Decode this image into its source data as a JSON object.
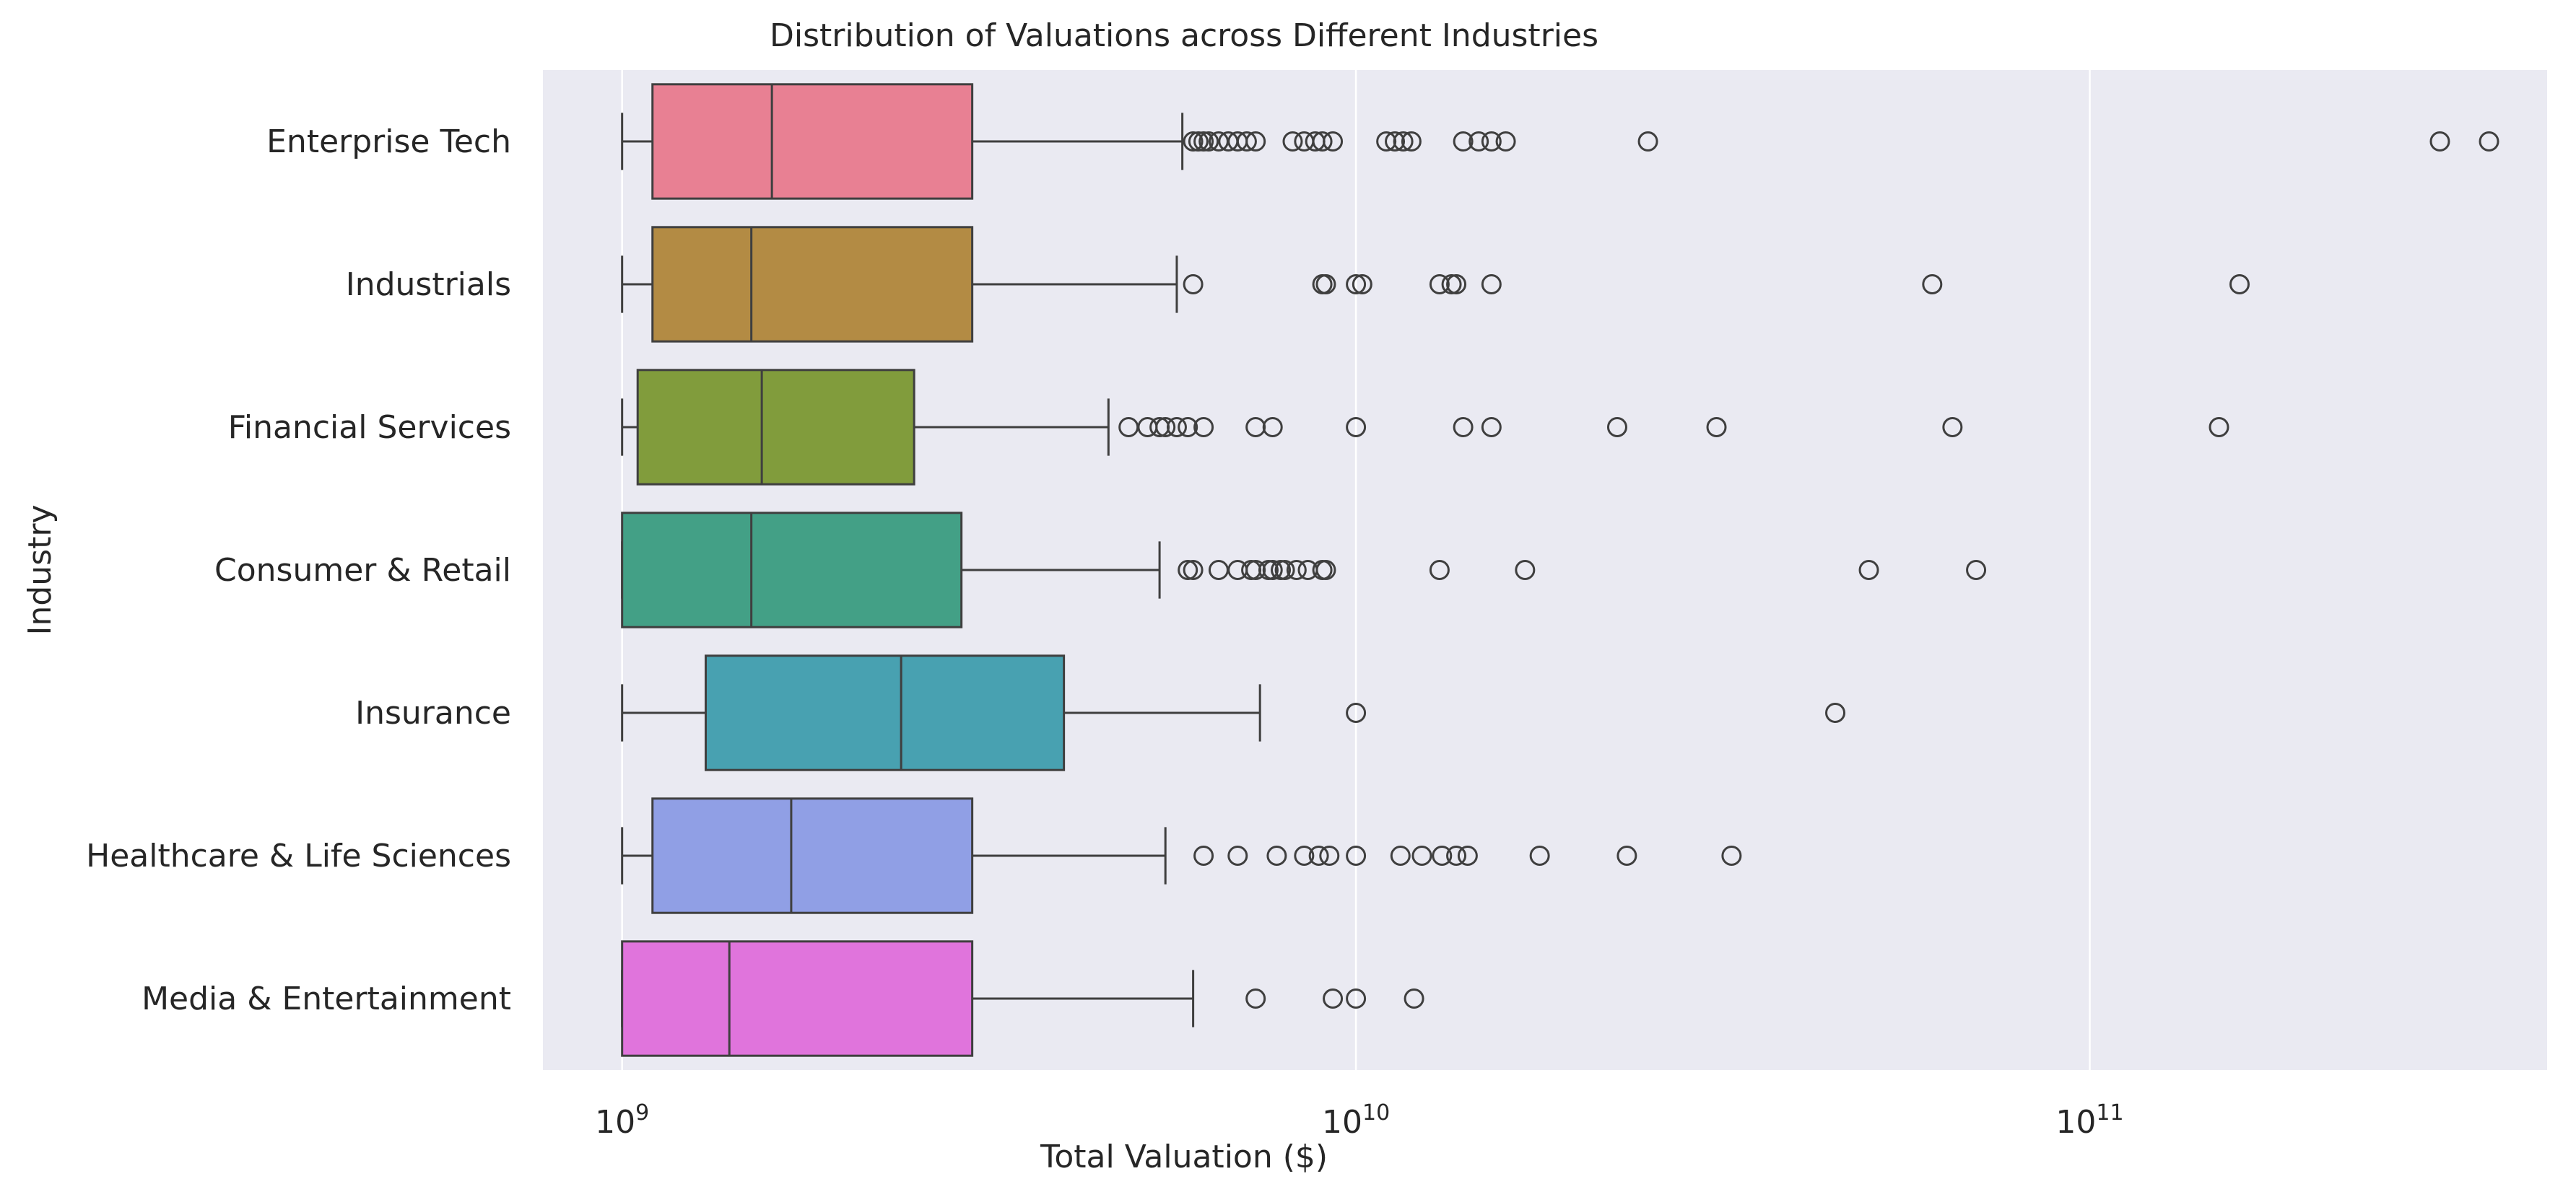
{
  "chart_data": {
    "type": "box",
    "title": "Distribution of Valuations across Different Industries",
    "xlabel": "Total Valuation ($)",
    "ylabel": "Industry",
    "x_scale": "log",
    "xlim": [
      780000000,
      420000000000
    ],
    "x_ticks": [
      {
        "value": 1000000000,
        "base": "10",
        "exp": "9"
      },
      {
        "value": 10000000000,
        "base": "10",
        "exp": "10"
      },
      {
        "value": 100000000000,
        "base": "10",
        "exp": "11"
      }
    ],
    "grid": true,
    "categories": [
      "Enterprise Tech",
      "Industrials",
      "Financial Services",
      "Consumer & Retail",
      "Insurance",
      "Healthcare & Life Sciences",
      "Media & Entertainment"
    ],
    "series": [
      {
        "category": "Enterprise Tech",
        "color": "#e88093",
        "whisker_low": 1000000000,
        "q1": 1100000000,
        "median": 1600000000,
        "q3": 3000000000,
        "whisker_high": 5800000000,
        "outliers": [
          6000000000,
          6100000000,
          6200000000,
          6300000000,
          6500000000,
          6700000000,
          6900000000,
          7100000000,
          7300000000,
          8200000000,
          8500000000,
          8800000000,
          9000000000,
          9300000000,
          11000000000,
          11300000000,
          11600000000,
          11900000000,
          14000000000,
          14700000000,
          15300000000,
          16000000000,
          25000000000,
          300000000000,
          350000000000
        ]
      },
      {
        "category": "Industrials",
        "color": "#b38b44",
        "whisker_low": 1000000000,
        "q1": 1100000000,
        "median": 1500000000,
        "q3": 3000000000,
        "whisker_high": 5700000000,
        "outliers": [
          6000000000,
          9000000000,
          9100000000,
          10000000000,
          10200000000,
          13000000000,
          13500000000,
          13700000000,
          15300000000,
          61000000000,
          160000000000
        ]
      },
      {
        "category": "Financial Services",
        "color": "#819c3c",
        "whisker_low": 1000000000,
        "q1": 1050000000,
        "median": 1550000000,
        "q3": 2500000000,
        "whisker_high": 4600000000,
        "outliers": [
          4900000000,
          5200000000,
          5400000000,
          5500000000,
          5700000000,
          5900000000,
          6200000000,
          7300000000,
          7700000000,
          10000000000,
          14000000000,
          15300000000,
          22700000000,
          31000000000,
          65000000000,
          150000000000
        ]
      },
      {
        "category": "Consumer & Retail",
        "color": "#43a086",
        "whisker_low": 1000000000,
        "q1": 1000000000,
        "median": 1500000000,
        "q3": 2900000000,
        "whisker_high": 5400000000,
        "outliers": [
          5900000000,
          6000000000,
          6500000000,
          6900000000,
          7200000000,
          7300000000,
          7600000000,
          7700000000,
          7900000000,
          8000000000,
          8300000000,
          8600000000,
          9000000000,
          9100000000,
          13000000000,
          17000000000,
          50000000000,
          70000000000
        ]
      },
      {
        "category": "Insurance",
        "color": "#48a1b1",
        "whisker_low": 1000000000,
        "q1": 1300000000,
        "median": 2400000000,
        "q3": 4000000000,
        "whisker_high": 7400000000,
        "outliers": [
          10000000000,
          45000000000
        ]
      },
      {
        "category": "Healthcare & Life Sciences",
        "color": "#909fe5",
        "whisker_low": 1000000000,
        "q1": 1100000000,
        "median": 1700000000,
        "q3": 3000000000,
        "whisker_high": 5500000000,
        "outliers": [
          6200000000,
          6900000000,
          7800000000,
          8500000000,
          8900000000,
          9200000000,
          10000000000,
          11500000000,
          12300000000,
          13100000000,
          13700000000,
          14200000000,
          17800000000,
          23400000000,
          32500000000
        ]
      },
      {
        "category": "Media & Entertainment",
        "color": "#e074dc",
        "whisker_low": 1000000000,
        "q1": 1000000000,
        "median": 1400000000,
        "q3": 3000000000,
        "whisker_high": 6000000000,
        "outliers": [
          7300000000,
          9300000000,
          10000000000,
          12000000000
        ]
      }
    ]
  }
}
